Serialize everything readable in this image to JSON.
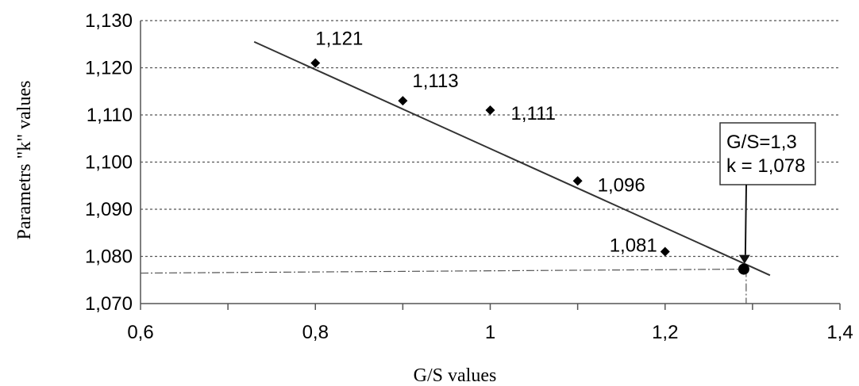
{
  "chart_data": {
    "type": "scatter",
    "xlabel": "G/S values",
    "ylabel": "Parametrs \"k\" values",
    "xlim": [
      0.6,
      1.4
    ],
    "ylim": [
      1.07,
      1.13
    ],
    "x_ticks": [
      "0,6",
      "0,8",
      "1",
      "1,2",
      "1,4"
    ],
    "y_ticks": [
      "1,070",
      "1,080",
      "1,090",
      "1,100",
      "1,110",
      "1,120",
      "1,130"
    ],
    "grid": "horizontal dashed",
    "points": [
      {
        "x": 0.8,
        "y": 1.121,
        "label": "1,121"
      },
      {
        "x": 0.9,
        "y": 1.113,
        "label": "1,113"
      },
      {
        "x": 1.0,
        "y": 1.111,
        "label": "1,111"
      },
      {
        "x": 1.1,
        "y": 1.096,
        "label": "1,096"
      },
      {
        "x": 1.2,
        "y": 1.081,
        "label": "1,081"
      }
    ],
    "trendline": {
      "x": [
        0.73,
        1.32
      ],
      "y": [
        1.1255,
        1.076
      ]
    },
    "highlight_point": {
      "x": 1.29,
      "y": 1.0773
    },
    "callout": {
      "lines": [
        "G/S=1,3",
        "k = 1,078"
      ]
    }
  }
}
